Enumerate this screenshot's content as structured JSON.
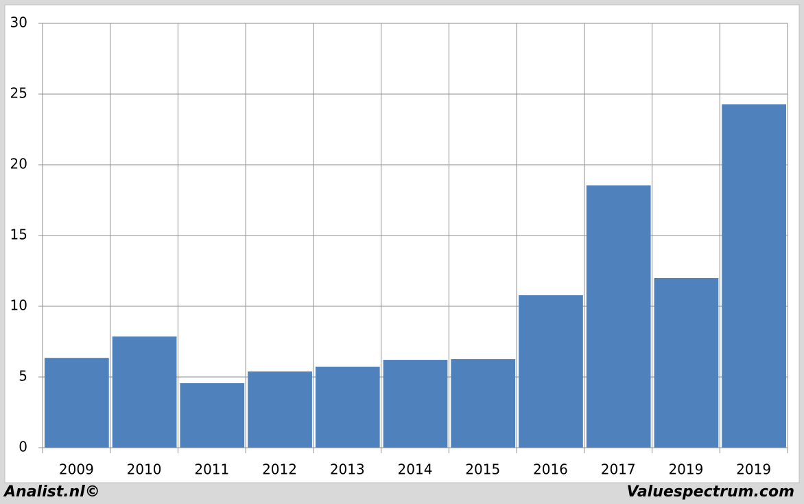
{
  "chart_data": {
    "type": "bar",
    "categories": [
      "2009",
      "2010",
      "2011",
      "2012",
      "2013",
      "2014",
      "2015",
      "2016",
      "2017",
      "2019",
      "2019"
    ],
    "values": [
      6.35,
      7.86,
      4.56,
      5.39,
      5.73,
      6.21,
      6.26,
      10.78,
      18.54,
      11.99,
      24.27
    ],
    "color": "#4f81bd",
    "ylim": [
      0,
      30
    ],
    "yticks": [
      0,
      5,
      10,
      15,
      20,
      25,
      30
    ],
    "grid": true
  },
  "footer": {
    "left": "Analist.nl©",
    "right": "Valuespectrum.com"
  }
}
